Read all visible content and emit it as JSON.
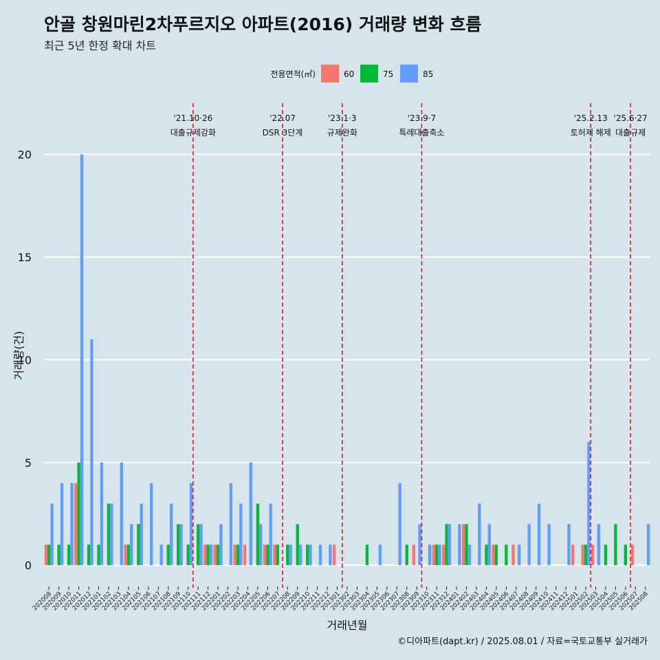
{
  "title": "안골 창원마린2차푸르지오 아파트(2016) 거래량 변화 흐름",
  "subtitle": "최근 5년 한정 확대 차트",
  "caption": "©디아파트(dapt.kr) / 2025.08.01 / 자료=국토교통부 실거래가",
  "colors": {
    "60": "#f8766d",
    "75": "#00ba38",
    "85": "#619cff",
    "vline": "#e8141c",
    "background": "#d6e4ec"
  },
  "chart_data": {
    "type": "bar",
    "xlabel": "거래년월",
    "ylabel": "거래량(건)",
    "ylim": [
      -1.1,
      22.5
    ],
    "yticks": [
      0,
      5,
      10,
      15,
      20
    ],
    "legend": {
      "title": "전용면적(㎡)",
      "position": "top",
      "entries": [
        "60",
        "75",
        "85"
      ]
    },
    "grid": true,
    "categories": [
      "202008",
      "202009",
      "202010",
      "202011",
      "202012",
      "202101",
      "202102",
      "202103",
      "202104",
      "202105",
      "202106",
      "202107",
      "202108",
      "202109",
      "202110",
      "202111",
      "202112",
      "202201",
      "202202",
      "202203",
      "202204",
      "202205",
      "202206",
      "202207",
      "202208",
      "202209",
      "202210",
      "202211",
      "202212",
      "202301",
      "202302",
      "202303",
      "202304",
      "202305",
      "202306",
      "202307",
      "202308",
      "202309",
      "202310",
      "202311",
      "202312",
      "202401",
      "202402",
      "202403",
      "202404",
      "202405",
      "202406",
      "202407",
      "202408",
      "202409",
      "202410",
      "202411",
      "202412",
      "202501",
      "202502",
      "202503",
      "202504",
      "202505",
      "202506",
      "202507",
      "202508"
    ],
    "series": [
      {
        "name": "60",
        "values": [
          1,
          0,
          0,
          4,
          0,
          0,
          0,
          0,
          1,
          0,
          0,
          0,
          0,
          0,
          0,
          0,
          1,
          1,
          0,
          1,
          1,
          0,
          1,
          1,
          0,
          0,
          0,
          0,
          0,
          1,
          0,
          0,
          0,
          0,
          0,
          0,
          0,
          1,
          0,
          1,
          1,
          0,
          2,
          0,
          0,
          1,
          0,
          1,
          0,
          0,
          0,
          0,
          0,
          1,
          1,
          1,
          0,
          0,
          0,
          1,
          0
        ]
      },
      {
        "name": "75",
        "values": [
          1,
          1,
          1,
          5,
          1,
          1,
          3,
          0,
          1,
          2,
          0,
          0,
          1,
          2,
          1,
          2,
          1,
          1,
          0,
          1,
          0,
          3,
          1,
          1,
          1,
          2,
          1,
          0,
          0,
          0,
          0,
          0,
          1,
          0,
          0,
          0,
          1,
          0,
          0,
          1,
          2,
          0,
          2,
          0,
          1,
          1,
          1,
          0,
          0,
          0,
          0,
          0,
          0,
          0,
          1,
          0,
          1,
          2,
          1,
          0,
          0
        ]
      },
      {
        "name": "85",
        "values": [
          3,
          4,
          4,
          20,
          11,
          5,
          3,
          5,
          2,
          3,
          4,
          1,
          3,
          2,
          4,
          2,
          1,
          2,
          4,
          3,
          5,
          2,
          3,
          0,
          1,
          1,
          1,
          1,
          1,
          0,
          0,
          0,
          0,
          1,
          0,
          4,
          0,
          2,
          1,
          1,
          2,
          2,
          1,
          3,
          2,
          0,
          0,
          1,
          2,
          3,
          2,
          0,
          2,
          0,
          6,
          2,
          0,
          0,
          0,
          0,
          2
        ]
      }
    ],
    "vlines": [
      {
        "after": "202110",
        "date": "'21.10·26",
        "label": "대출규제강화"
      },
      {
        "after": "202207",
        "date": "'22.07",
        "label": "DSR 3단계"
      },
      {
        "after": "202301",
        "date": "'23.1·3",
        "label": "규제완화"
      },
      {
        "after": "202309",
        "date": "'23.9·7",
        "label": "특례대출축소"
      },
      {
        "after": "202502",
        "date": "'25.2.13",
        "label": "토허제 해제"
      },
      {
        "after": "202506",
        "date": "'25.6·27",
        "label": "대출규제"
      }
    ]
  }
}
